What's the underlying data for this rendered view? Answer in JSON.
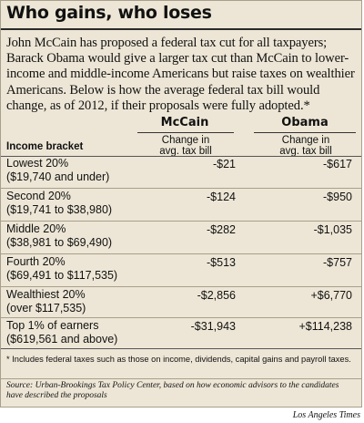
{
  "title": "Who gains, who loses",
  "intro": "John McCain has proposed a federal tax cut for all taxpayers; Barack Obama would give a larger tax cut than McCain to lower-income and middle-income Americans but raise taxes on wealthier Americans. Below is how the average federal tax bill would change, as of 2012, if their proposals were fully adopted.*",
  "columns": {
    "bracket": "Income bracket",
    "mccain": "McCain",
    "obama": "Obama",
    "sub_line1": "Change in",
    "sub_line2": "avg. tax bill"
  },
  "rows": [
    {
      "name": "Lowest 20%",
      "range": "($19,740 and under)",
      "mccain": "-$21",
      "obama": "-$617"
    },
    {
      "name": "Second 20%",
      "range": "($19,741 to $38,980)",
      "mccain": "-$124",
      "obama": "-$950"
    },
    {
      "name": "Middle 20%",
      "range": "($38,981 to $69,490)",
      "mccain": "-$282",
      "obama": "-$1,035"
    },
    {
      "name": "Fourth 20%",
      "range": "($69,491 to $117,535)",
      "mccain": "-$513",
      "obama": "-$757"
    },
    {
      "name": "Wealthiest 20%",
      "range": "(over $117,535)",
      "mccain": "-$2,856",
      "obama": "+$6,770"
    },
    {
      "name": "Top 1% of earners",
      "range": "($619,561 and above)",
      "mccain": "-$31,943",
      "obama": "+$114,238"
    }
  ],
  "footnote": "* Includes federal taxes such as those on income, dividends, capital gains and payroll taxes.",
  "source": "Source: Urban-Brookings Tax Policy Center, based on how economic advisors to the candidates have described the proposals",
  "credit": "Los Angeles Times"
}
